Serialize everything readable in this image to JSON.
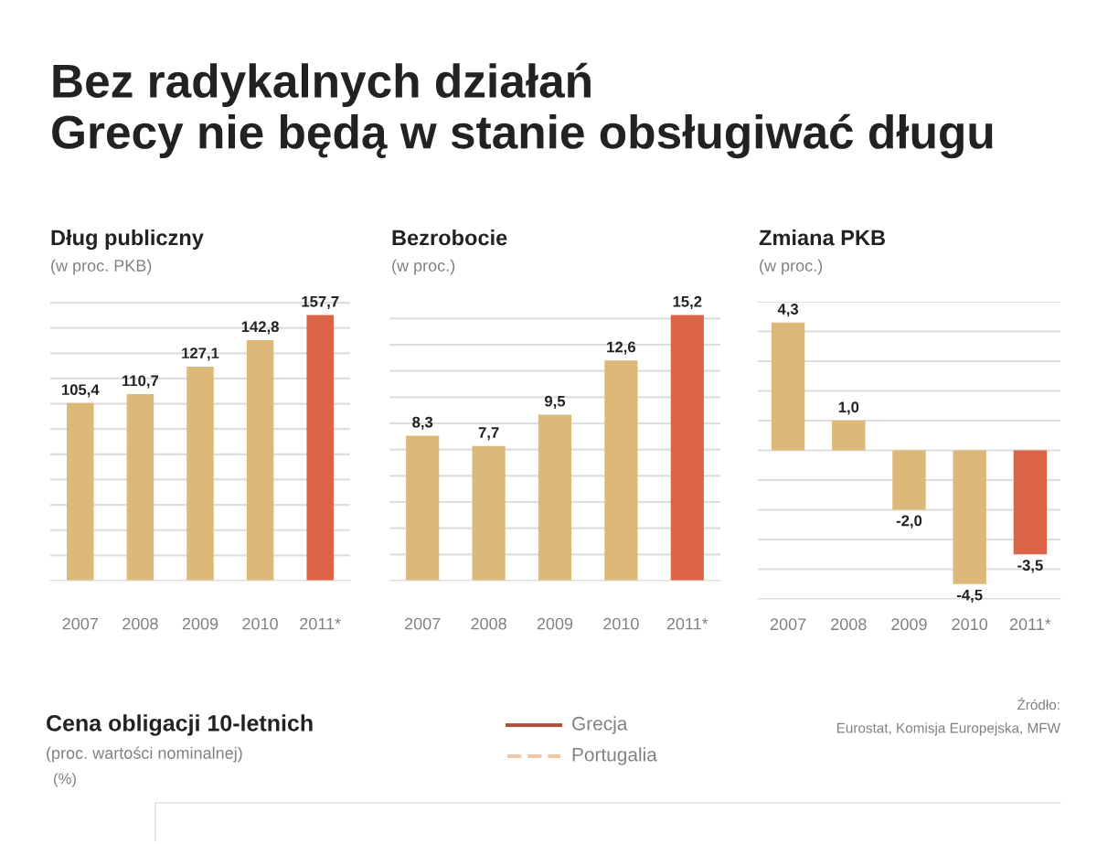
{
  "chart_data": [
    {
      "type": "other",
      "title": "Bez radykalnych działań\nGrecy nie będą w stanie obsługiwać długu"
    },
    {
      "type": "bar",
      "title": "Dług publiczny",
      "subtitle": "(w proc. PKB)",
      "categories": [
        "2007",
        "2008",
        "2009",
        "2010",
        "2011*"
      ],
      "values": [
        105.4,
        110.7,
        127.1,
        142.8,
        157.7
      ],
      "value_labels": [
        "105,4",
        "110,7",
        "127,1",
        "142,8",
        "157,7"
      ],
      "colors": [
        "#dcb978",
        "#dcb978",
        "#dcb978",
        "#dcb978",
        "#dc6446"
      ],
      "yticks": [
        {
          "value": 0,
          "label": null
        },
        {
          "value": 15,
          "label": null
        },
        {
          "value": 30,
          "label": null
        },
        {
          "value": 45,
          "label": null
        },
        {
          "value": 60,
          "label": null
        },
        {
          "value": 75,
          "label": null
        },
        {
          "value": 90,
          "label": null
        },
        {
          "value": 105,
          "label": null
        },
        {
          "value": 120,
          "label": null
        },
        {
          "value": 135,
          "label": null
        },
        {
          "value": 150,
          "label": null
        },
        {
          "value": 165,
          "label": null
        }
      ],
      "grid": "y",
      "tick_labels": "x"
    },
    {
      "type": "bar",
      "title": "Bezrobocie",
      "subtitle": "(w proc.)",
      "categories": [
        "2007",
        "2008",
        "2009",
        "2010",
        "2011*"
      ],
      "values": [
        8.3,
        7.7,
        9.5,
        12.6,
        15.2
      ],
      "value_labels": [
        "8,3",
        "7,7",
        "9,5",
        "12,6",
        "15,2"
      ],
      "colors": [
        "#dcb978",
        "#dcb978",
        "#dcb978",
        "#dcb978",
        "#dc6446"
      ],
      "yticks": [
        {
          "value": 0,
          "label": null
        },
        {
          "value": 1.5,
          "label": null
        },
        {
          "value": 3,
          "label": null
        },
        {
          "value": 4.5,
          "label": null
        },
        {
          "value": 6,
          "label": null
        },
        {
          "value": 7.5,
          "label": null
        },
        {
          "value": 9,
          "label": null
        },
        {
          "value": 10.5,
          "label": null
        },
        {
          "value": 12,
          "label": null
        },
        {
          "value": 13.5,
          "label": null
        },
        {
          "value": 15,
          "label": null
        }
      ],
      "grid": "y",
      "tick_labels": "x"
    },
    {
      "type": "bar",
      "title": "Zmiana PKB",
      "subtitle": "(w proc.)",
      "categories": [
        "2007",
        "2008",
        "2009",
        "2010",
        "2011*"
      ],
      "values": [
        4.3,
        1.0,
        -2.0,
        -4.5,
        -3.5
      ],
      "value_labels": [
        "4,3",
        "1,0",
        "-2,0",
        "-4,5",
        "-3,5"
      ],
      "colors": [
        "#dcb978",
        "#dcb978",
        "#dcb978",
        "#dcb978",
        "#dc6446"
      ],
      "yticks": [
        {
          "value": -5,
          "label": null
        },
        {
          "value": -4,
          "label": null
        },
        {
          "value": -3,
          "label": null
        },
        {
          "value": -2,
          "label": null
        },
        {
          "value": -1,
          "label": null
        },
        {
          "value": 0,
          "label": null
        },
        {
          "value": 1,
          "label": null
        },
        {
          "value": 2,
          "label": null
        },
        {
          "value": 3,
          "label": null
        },
        {
          "value": 4,
          "label": null
        },
        {
          "value": 5,
          "label": null
        }
      ],
      "grid": "y",
      "tick_labels": "x"
    },
    {
      "type": "other",
      "title": "Cena obligacji 10-letnich",
      "subtitle": "(proc. wartości nominalnej)",
      "ylabel": "(%)",
      "annotations": [
        "Grecja",
        "Portugalia",
        "Źródło:\nEurostat, Komisja Europejska, MFW"
      ]
    }
  ]
}
